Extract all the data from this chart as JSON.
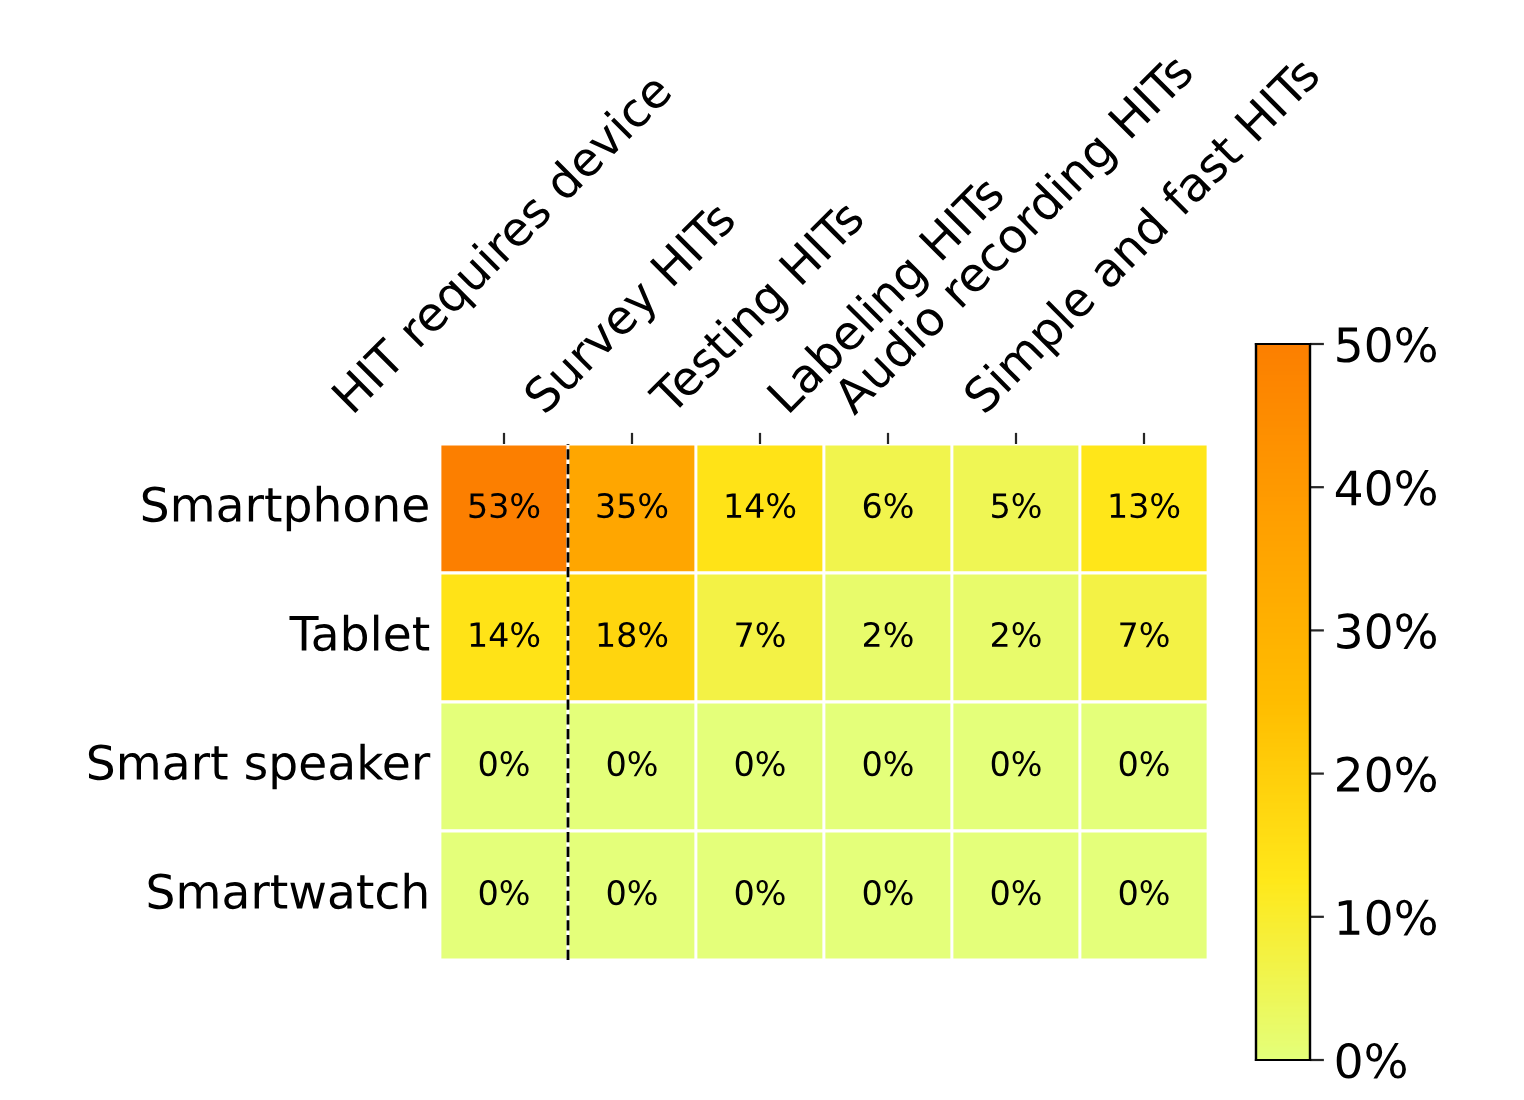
{
  "chart_data": {
    "type": "heatmap",
    "categories": [
      "HIT requires device",
      "Survey HITs",
      "Testing HITs",
      "Labeling HITs",
      "Audio recording HITs",
      "Simple and fast HITs"
    ],
    "y_categories": [
      "Smartphone",
      "Tablet",
      "Smart speaker",
      "Smartwatch"
    ],
    "cells": [
      [
        53,
        35,
        14,
        6,
        5,
        13
      ],
      [
        14,
        18,
        7,
        2,
        2,
        7
      ],
      [
        0,
        0,
        0,
        0,
        0,
        0
      ],
      [
        0,
        0,
        0,
        0,
        0,
        0
      ]
    ],
    "cell_labels": [
      [
        "53%",
        "35%",
        "14%",
        "6%",
        "5%",
        "13%"
      ],
      [
        "14%",
        "18%",
        "7%",
        "2%",
        "2%",
        "7%"
      ],
      [
        "0%",
        "0%",
        "0%",
        "0%",
        "0%",
        "0%"
      ],
      [
        "0%",
        "0%",
        "0%",
        "0%",
        "0%",
        "0%"
      ]
    ],
    "clim": [
      0,
      50
    ],
    "cticks": [
      {
        "value": 0,
        "label": "0%"
      },
      {
        "value": 10,
        "label": "10%"
      },
      {
        "value": 20,
        "label": "20%"
      },
      {
        "value": 30,
        "label": "30%"
      },
      {
        "value": 40,
        "label": "40%"
      },
      {
        "value": 50,
        "label": "50%"
      }
    ]
  }
}
